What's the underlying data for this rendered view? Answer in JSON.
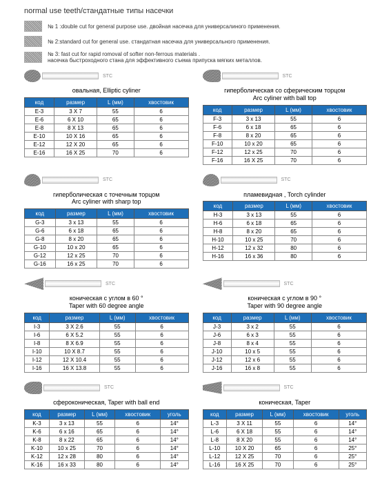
{
  "header": {
    "title": "normal use teeth/стандатные типы насечки",
    "cuts": [
      {
        "label": "№ 1 :double cut for general purpose use. двойная насечка для универсалиного применения."
      },
      {
        "label": "№ 2:standard cut for general use. стандатная насечка для универсального применения."
      },
      {
        "label": "№ 3: fast cut for rapid romoval of softer non-ferrous materials .\nнасечка быстроходного стана для эффективного съема припуска мягких металлов."
      }
    ]
  },
  "tables": {
    "headers4": [
      "код",
      "размер",
      "L (мм)",
      "хвостовик"
    ],
    "headers5": [
      "код",
      "размер",
      "L (мм)",
      "хвостовик",
      "уголь"
    ]
  },
  "sections": [
    {
      "title": "овальная,   Elliptic cyliner",
      "shape": "oval",
      "cols": 4,
      "rows": [
        [
          "E-3",
          "3 X 7",
          "55",
          "6"
        ],
        [
          "E-6",
          "6 X 10",
          "65",
          "6"
        ],
        [
          "E-8",
          "8 X 13",
          "65",
          "6"
        ],
        [
          "E-10",
          "10 X 16",
          "65",
          "6"
        ],
        [
          "E-12",
          "12 X 20",
          "65",
          "6"
        ],
        [
          "E-16",
          "16 X 25",
          "70",
          "6"
        ]
      ]
    },
    {
      "title": "гиперболическая со сферическим торцом\nArc cyliner with ball top",
      "shape": "ballend",
      "cols": 4,
      "rows": [
        [
          "F-3",
          "3 x 13",
          "55",
          "6"
        ],
        [
          "F-6",
          "6 x 18",
          "65",
          "6"
        ],
        [
          "F-8",
          "8 x 20",
          "65",
          "6"
        ],
        [
          "F-10",
          "10 x 20",
          "65",
          "6"
        ],
        [
          "F-12",
          "12 x 25",
          "70",
          "6"
        ],
        [
          "F-16",
          "16 X 25",
          "70",
          "6"
        ]
      ]
    },
    {
      "title": "гиперболическая с точечным торцом\nArc cyliner with sharp top",
      "shape": "flame",
      "cols": 4,
      "rows": [
        [
          "G-3",
          "3 x 13",
          "55",
          "6"
        ],
        [
          "G-6",
          "6 x 18",
          "65",
          "6"
        ],
        [
          "G-8",
          "8 x 20",
          "65",
          "6"
        ],
        [
          "G-10",
          "10 x 20",
          "65",
          "6"
        ],
        [
          "G-12",
          "12 x 25",
          "70",
          "6"
        ],
        [
          "G-16",
          "16 x 25",
          "70",
          "6"
        ]
      ]
    },
    {
      "title": "пламевидная ,  Torch cylinder",
      "shape": "flame",
      "cols": 4,
      "rows": [
        [
          "H-3",
          "3 x 13",
          "55",
          "6"
        ],
        [
          "H-6",
          "6 x 18",
          "65",
          "6"
        ],
        [
          "H-8",
          "8 x 20",
          "65",
          "6"
        ],
        [
          "H-10",
          "10 x 25",
          "70",
          "6"
        ],
        [
          "H-12",
          "12 x 32",
          "80",
          "6"
        ],
        [
          "H-16",
          "16 x 36",
          "80",
          "6"
        ]
      ]
    },
    {
      "title": "коническая с углом в 60 °\nTaper with 60 degree angle",
      "shape": "cone",
      "cols": 4,
      "rows": [
        [
          "I-3",
          "3 X 2.6",
          "55",
          "6"
        ],
        [
          "I-6",
          "6 X 5.2",
          "55",
          "6"
        ],
        [
          "I-8",
          "8 X 6.9",
          "55",
          "6"
        ],
        [
          "I-10",
          "10 X 8.7",
          "55",
          "6"
        ],
        [
          "I-12",
          "12 X 10.4",
          "55",
          "6"
        ],
        [
          "I-16",
          "16 X 13.8",
          "55",
          "6"
        ]
      ]
    },
    {
      "title": "коническая с углом в 90 °\nTaper with 90 degree angle",
      "shape": "cone",
      "cols": 4,
      "rows": [
        [
          "J-3",
          "3 x 2",
          "55",
          "6"
        ],
        [
          "J-6",
          "6 x 3",
          "55",
          "6"
        ],
        [
          "J-8",
          "8 x 4",
          "55",
          "6"
        ],
        [
          "J-10",
          "10 x 5",
          "55",
          "6"
        ],
        [
          "J-12",
          "12 x 6",
          "55",
          "6"
        ],
        [
          "J-16",
          "16 x 8",
          "55",
          "6"
        ]
      ]
    },
    {
      "title": "сфероконическая,  Taper with ball end",
      "shape": "ballend",
      "cols": 5,
      "rows": [
        [
          "K-3",
          "3 x 13",
          "55",
          "6",
          "14°"
        ],
        [
          "K-6",
          "6 x 16",
          "65",
          "6",
          "14°"
        ],
        [
          "K-8",
          "8 x 22",
          "65",
          "6",
          "14°"
        ],
        [
          "K-10",
          "10 x 25",
          "70",
          "6",
          "14°"
        ],
        [
          "K-12",
          "12 x 28",
          "80",
          "6",
          "14°"
        ],
        [
          "K-16",
          "16 x 33",
          "80",
          "6",
          "14°"
        ]
      ]
    },
    {
      "title": "коническая,  Taper",
      "shape": "taper",
      "cols": 5,
      "rows": [
        [
          "L-3",
          "3 X 11",
          "55",
          "6",
          "14°"
        ],
        [
          "L-6",
          "6 X 18",
          "55",
          "6",
          "14°"
        ],
        [
          "L-8",
          "8 X 20",
          "55",
          "6",
          "14°"
        ],
        [
          "L-10",
          "10 X 20",
          "65",
          "6",
          "25°"
        ],
        [
          "L-12",
          "12 X 25",
          "70",
          "6",
          "25°"
        ],
        [
          "L-16",
          "16 X 25",
          "70",
          "6",
          "25°"
        ]
      ]
    }
  ],
  "stc": "STC"
}
